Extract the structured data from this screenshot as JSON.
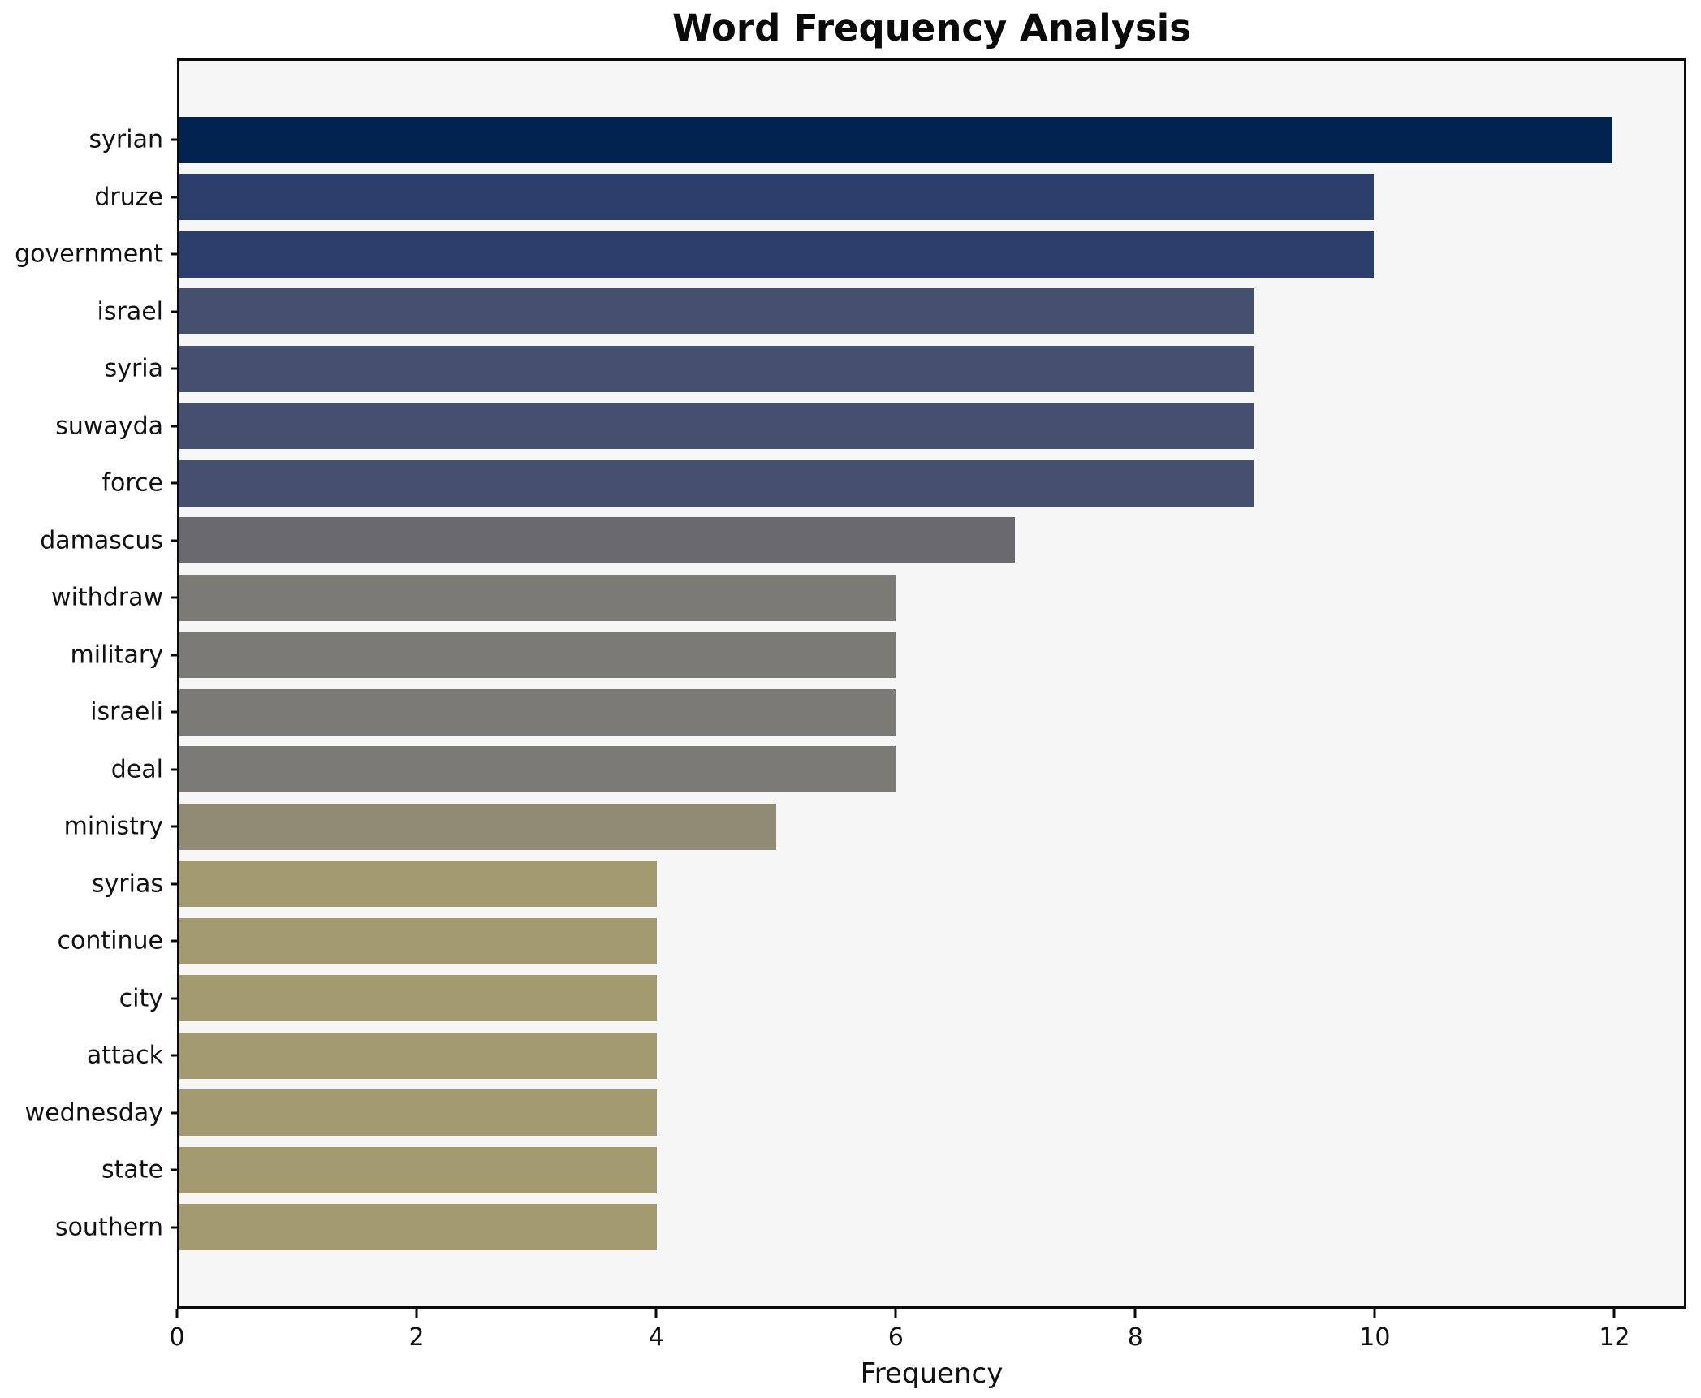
{
  "chart_data": {
    "type": "bar",
    "orientation": "horizontal",
    "title": "Word Frequency Analysis",
    "xlabel": "Frequency",
    "ylabel": "",
    "xlim": [
      0,
      12.6
    ],
    "xticks": [
      0,
      2,
      4,
      6,
      8,
      10,
      12
    ],
    "grid": false,
    "legend": "none",
    "plot_background": "#f6f6f7",
    "figure_background": "#ffffff",
    "categories": [
      "syrian",
      "druze",
      "government",
      "israel",
      "syria",
      "suwayda",
      "force",
      "damascus",
      "withdraw",
      "military",
      "israeli",
      "deal",
      "ministry",
      "syrias",
      "continue",
      "city",
      "attack",
      "wednesday",
      "state",
      "southern"
    ],
    "values": [
      12,
      10,
      10,
      9,
      9,
      9,
      9,
      7,
      6,
      6,
      6,
      6,
      5,
      4,
      4,
      4,
      4,
      4,
      4,
      4
    ],
    "bar_colors": [
      "#02234f",
      "#2c3e6c",
      "#2c3e6c",
      "#45506f",
      "#45506f",
      "#45506f",
      "#45506f",
      "#69696f",
      "#7b7a74",
      "#7b7a74",
      "#7b7a74",
      "#7b7a74",
      "#918a74",
      "#a49a70",
      "#a49a70",
      "#a49a70",
      "#a49a70",
      "#a49a70",
      "#a49a70",
      "#a49a70"
    ]
  }
}
